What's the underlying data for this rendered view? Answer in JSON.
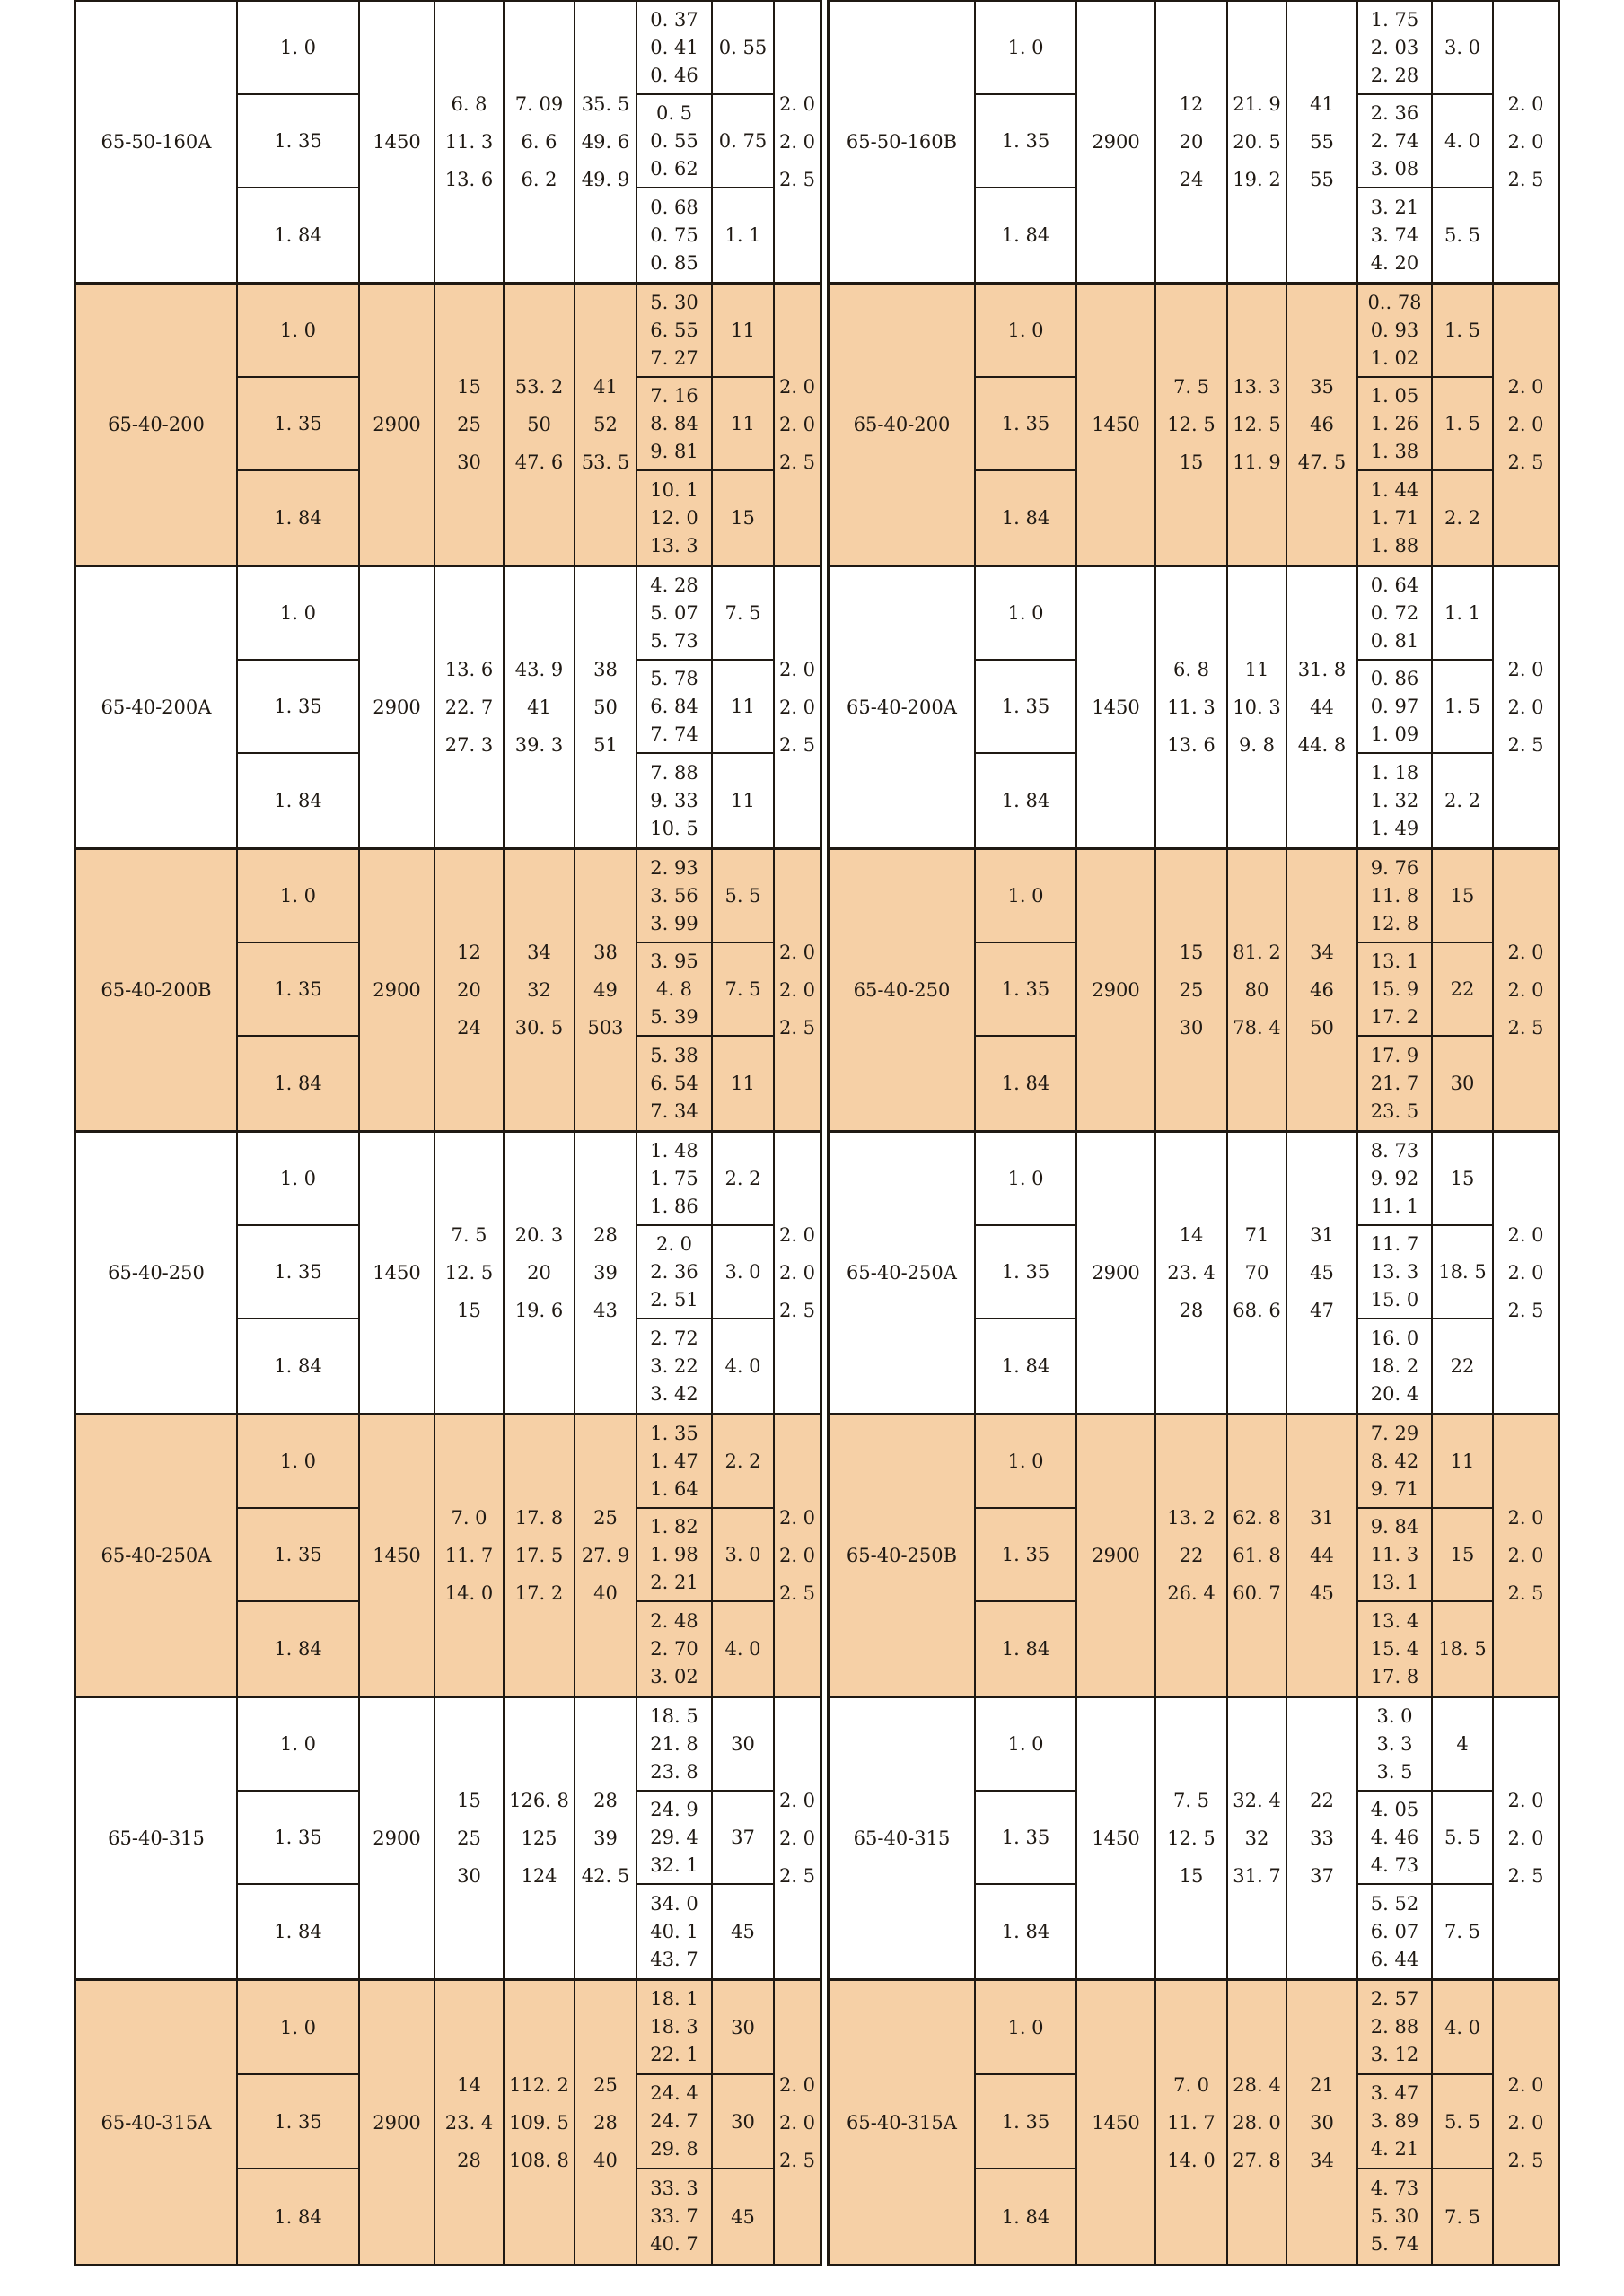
{
  "style": {
    "band_color": "#f6d0a6",
    "ink_color": "#1f1913"
  },
  "groups": [
    {
      "shaded": false,
      "left": {
        "model": "65-50-160A",
        "sub_values": [
          "1.0",
          "1.35",
          "1.84"
        ],
        "speed": "1450",
        "c4": [
          "6.8",
          "11.3",
          "13.6"
        ],
        "c5": [
          "7.09",
          "6.6",
          "6.2"
        ],
        "c6": [
          "35.5",
          "49.6",
          "49.9"
        ],
        "c7": [
          [
            "0.37",
            "0.41",
            "0.46"
          ],
          [
            "0.5",
            "0.55",
            "0.62"
          ],
          [
            "0.68",
            "0.75",
            "0.85"
          ]
        ],
        "c8": [
          "0.55",
          "0.75",
          "1.1"
        ],
        "c9": [
          "2.0",
          "2.0",
          "2.5"
        ]
      },
      "right": {
        "model": "65-50-160B",
        "sub_values": [
          "1.0",
          "1.35",
          "1.84"
        ],
        "speed": "2900",
        "c4": [
          "12",
          "20",
          "24"
        ],
        "c5": [
          "21.9",
          "20.5",
          "19.2"
        ],
        "c6": [
          "41",
          "55",
          "55"
        ],
        "c7": [
          [
            "1.75",
            "2.03",
            "2.28"
          ],
          [
            "2.36",
            "2.74",
            "3.08"
          ],
          [
            "3.21",
            "3.74",
            "4.20"
          ]
        ],
        "c8": [
          "3.0",
          "4.0",
          "5.5"
        ],
        "c9": [
          "2.0",
          "2.0",
          "2.5"
        ]
      }
    },
    {
      "shaded": true,
      "left": {
        "model": "65-40-200",
        "sub_values": [
          "1.0",
          "1.35",
          "1.84"
        ],
        "speed": "2900",
        "c4": [
          "15",
          "25",
          "30"
        ],
        "c5": [
          "53.2",
          "50",
          "47.6"
        ],
        "c6": [
          "41",
          "52",
          "53.5"
        ],
        "c7": [
          [
            "5.30",
            "6.55",
            "7.27"
          ],
          [
            "7.16",
            "8.84",
            "9.81"
          ],
          [
            "10.1",
            "12.0",
            "13.3"
          ]
        ],
        "c8": [
          "11",
          "11",
          "15"
        ],
        "c9": [
          "2.0",
          "2.0",
          "2.5"
        ]
      },
      "right": {
        "model": "65-40-200",
        "sub_values": [
          "1.0",
          "1.35",
          "1.84"
        ],
        "speed": "1450",
        "c4": [
          "7.5",
          "12.5",
          "15"
        ],
        "c5": [
          "13.3",
          "12.5",
          "11.9"
        ],
        "c6": [
          "35",
          "46",
          "47.5"
        ],
        "c7": [
          [
            "0..78",
            "0.93",
            "1.02"
          ],
          [
            "1.05",
            "1.26",
            "1.38"
          ],
          [
            "1.44",
            "1.71",
            "1.88"
          ]
        ],
        "c8": [
          "1.5",
          "1.5",
          "2.2"
        ],
        "c9": [
          "2.0",
          "2.0",
          "2.5"
        ]
      }
    },
    {
      "shaded": false,
      "left": {
        "model": "65-40-200A",
        "sub_values": [
          "1.0",
          "1.35",
          "1.84"
        ],
        "speed": "2900",
        "c4": [
          "13.6",
          "22.7",
          "27.3"
        ],
        "c5": [
          "43.9",
          "41",
          "39.3"
        ],
        "c6": [
          "38",
          "50",
          "51"
        ],
        "c7": [
          [
            "4.28",
            "5.07",
            "5.73"
          ],
          [
            "5.78",
            "6.84",
            "7.74"
          ],
          [
            "7.88",
            "9.33",
            "10.5"
          ]
        ],
        "c8": [
          "7.5",
          "11",
          "11"
        ],
        "c9": [
          "2.0",
          "2.0",
          "2.5"
        ]
      },
      "right": {
        "model": "65-40-200A",
        "sub_values": [
          "1.0",
          "1.35",
          "1.84"
        ],
        "speed": "1450",
        "c4": [
          "6.8",
          "11.3",
          "13.6"
        ],
        "c5": [
          "11",
          "10.3",
          "9.8"
        ],
        "c6": [
          "31.8",
          "44",
          "44.8"
        ],
        "c7": [
          [
            "0.64",
            "0.72",
            "0.81"
          ],
          [
            "0.86",
            "0.97",
            "1.09"
          ],
          [
            "1.18",
            "1.32",
            "1.49"
          ]
        ],
        "c8": [
          "1.1",
          "1.5",
          "2.2"
        ],
        "c9": [
          "2.0",
          "2.0",
          "2.5"
        ]
      }
    },
    {
      "shaded": true,
      "left": {
        "model": "65-40-200B",
        "sub_values": [
          "1.0",
          "1.35",
          "1.84"
        ],
        "speed": "2900",
        "c4": [
          "12",
          "20",
          "24"
        ],
        "c5": [
          "34",
          "32",
          "30.5"
        ],
        "c6": [
          "38",
          "49",
          "503"
        ],
        "c7": [
          [
            "2.93",
            "3.56",
            "3.99"
          ],
          [
            "3.95",
            "4.8",
            "5.39"
          ],
          [
            "5.38",
            "6.54",
            "7.34"
          ]
        ],
        "c8": [
          "5.5",
          "7.5",
          "11"
        ],
        "c9": [
          "2.0",
          "2.0",
          "2.5"
        ]
      },
      "right": {
        "model": "65-40-250",
        "sub_values": [
          "1.0",
          "1.35",
          "1.84"
        ],
        "speed": "2900",
        "c4": [
          "15",
          "25",
          "30"
        ],
        "c5": [
          "81.2",
          "80",
          "78.4"
        ],
        "c6": [
          "34",
          "46",
          "50"
        ],
        "c7": [
          [
            "9.76",
            "11.8",
            "12.8"
          ],
          [
            "13.1",
            "15.9",
            "17.2"
          ],
          [
            "17.9",
            "21.7",
            "23.5"
          ]
        ],
        "c8": [
          "15",
          "22",
          "30"
        ],
        "c9": [
          "2.0",
          "2.0",
          "2.5"
        ]
      }
    },
    {
      "shaded": false,
      "left": {
        "model": "65-40-250",
        "sub_values": [
          "1.0",
          "1.35",
          "1.84"
        ],
        "speed": "1450",
        "c4": [
          "7.5",
          "12.5",
          "15"
        ],
        "c5": [
          "20.3",
          "20",
          "19.6"
        ],
        "c6": [
          "28",
          "39",
          "43"
        ],
        "c7": [
          [
            "1.48",
            "1.75",
            "1.86"
          ],
          [
            "2.0",
            "2.36",
            "2.51"
          ],
          [
            "2.72",
            "3.22",
            "3.42"
          ]
        ],
        "c8": [
          "2.2",
          "3.0",
          "4.0"
        ],
        "c9": [
          "2.0",
          "2.0",
          "2.5"
        ]
      },
      "right": {
        "model": "65-40-250A",
        "sub_values": [
          "1.0",
          "1.35",
          "1.84"
        ],
        "speed": "2900",
        "c4": [
          "14",
          "23.4",
          "28"
        ],
        "c5": [
          "71",
          "70",
          "68.6"
        ],
        "c6": [
          "31",
          "45",
          "47"
        ],
        "c7": [
          [
            "8.73",
            "9.92",
            "11.1"
          ],
          [
            "11.7",
            "13.3",
            "15.0"
          ],
          [
            "16.0",
            "18.2",
            "20.4"
          ]
        ],
        "c8": [
          "15",
          "18.5",
          "22"
        ],
        "c9": [
          "2.0",
          "2.0",
          "2.5"
        ]
      }
    },
    {
      "shaded": true,
      "left": {
        "model": "65-40-250A",
        "sub_values": [
          "1.0",
          "1.35",
          "1.84"
        ],
        "speed": "1450",
        "c4": [
          "7.0",
          "11.7",
          "14.0"
        ],
        "c5": [
          "17.8",
          "17.5",
          "17.2"
        ],
        "c6": [
          "25",
          "27.9",
          "40"
        ],
        "c7": [
          [
            "1.35",
            "1.47",
            "1.64"
          ],
          [
            "1.82",
            "1.98",
            "2.21"
          ],
          [
            "2.48",
            "2.70",
            "3.02"
          ]
        ],
        "c8": [
          "2.2",
          "3.0",
          "4.0"
        ],
        "c9": [
          "2.0",
          "2.0",
          "2.5"
        ]
      },
      "right": {
        "model": "65-40-250B",
        "sub_values": [
          "1.0",
          "1.35",
          "1.84"
        ],
        "speed": "2900",
        "c4": [
          "13.2",
          "22",
          "26.4"
        ],
        "c5": [
          "62.8",
          "61.8",
          "60.7"
        ],
        "c6": [
          "31",
          "44",
          "45"
        ],
        "c7": [
          [
            "7.29",
            "8.42",
            "9.71"
          ],
          [
            "9.84",
            "11.3",
            "13.1"
          ],
          [
            "13.4",
            "15.4",
            "17.8"
          ]
        ],
        "c8": [
          "11",
          "15",
          "18.5"
        ],
        "c9": [
          "2.0",
          "2.0",
          "2.5"
        ]
      }
    },
    {
      "shaded": false,
      "left": {
        "model": "65-40-315",
        "sub_values": [
          "1.0",
          "1.35",
          "1.84"
        ],
        "speed": "2900",
        "c4": [
          "15",
          "25",
          "30"
        ],
        "c5": [
          "126.8",
          "125",
          "124"
        ],
        "c6": [
          "28",
          "39",
          "42.5"
        ],
        "c7": [
          [
            "18.5",
            "21.8",
            "23.8"
          ],
          [
            "24.9",
            "29.4",
            "32.1"
          ],
          [
            "34.0",
            "40.1",
            "43.7"
          ]
        ],
        "c8": [
          "30",
          "37",
          "45"
        ],
        "c9": [
          "2.0",
          "2.0",
          "2.5"
        ]
      },
      "right": {
        "model": "65-40-315",
        "sub_values": [
          "1.0",
          "1.35",
          "1.84"
        ],
        "speed": "1450",
        "c4": [
          "7.5",
          "12.5",
          "15"
        ],
        "c5": [
          "32.4",
          "32",
          "31.7"
        ],
        "c6": [
          "22",
          "33",
          "37"
        ],
        "c7": [
          [
            "3.0",
            "3.3",
            "3.5"
          ],
          [
            "4.05",
            "4.46",
            "4.73"
          ],
          [
            "5.52",
            "6.07",
            "6.44"
          ]
        ],
        "c8": [
          "4",
          "5.5",
          "7.5"
        ],
        "c9": [
          "2.0",
          "2.0",
          "2.5"
        ]
      }
    },
    {
      "shaded": true,
      "left": {
        "model": "65-40-315A",
        "sub_values": [
          "1.0",
          "1.35",
          "1.84"
        ],
        "speed": "2900",
        "c4": [
          "14",
          "23.4",
          "28"
        ],
        "c5": [
          "112.2",
          "109.5",
          "108.8"
        ],
        "c6": [
          "25",
          "28",
          "40"
        ],
        "c7": [
          [
            "18.1",
            "18.3",
            "22.1"
          ],
          [
            "24.4",
            "24.7",
            "29.8"
          ],
          [
            "33.3",
            "33.7",
            "40.7"
          ]
        ],
        "c8": [
          "30",
          "30",
          "45"
        ],
        "c9": [
          "2.0",
          "2.0",
          "2.5"
        ]
      },
      "right": {
        "model": "65-40-315A",
        "sub_values": [
          "1.0",
          "1.35",
          "1.84"
        ],
        "speed": "1450",
        "c4": [
          "7.0",
          "11.7",
          "14.0"
        ],
        "c5": [
          "28.4",
          "28.0",
          "27.8"
        ],
        "c6": [
          "21",
          "30",
          "34"
        ],
        "c7": [
          [
            "2.57",
            "2.88",
            "3.12"
          ],
          [
            "3.47",
            "3.89",
            "4.21"
          ],
          [
            "4.73",
            "5.30",
            "5.74"
          ]
        ],
        "c8": [
          "4.0",
          "5.5",
          "7.5"
        ],
        "c9": [
          "2.0",
          "2.0",
          "2.5"
        ]
      }
    }
  ]
}
